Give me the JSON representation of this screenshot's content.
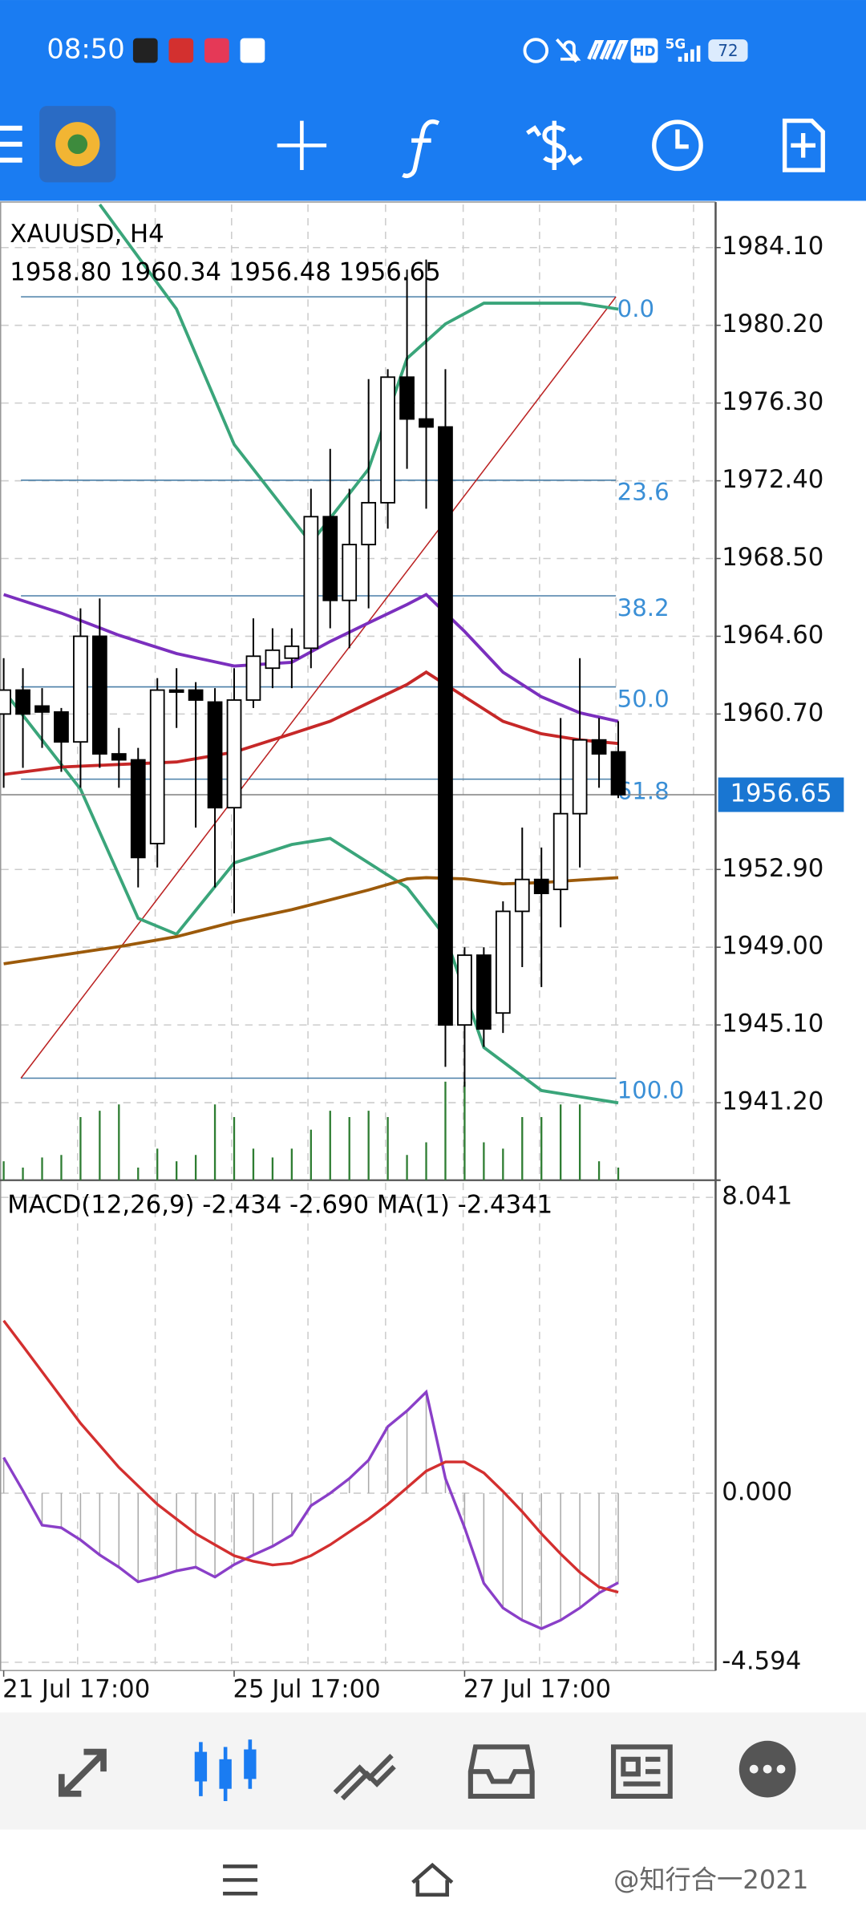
{
  "status_bar": {
    "time": "08:50",
    "hd": "HD",
    "network": "5G",
    "battery": "72"
  },
  "watermark": "@知行合一2021",
  "chart_data": [
    {
      "type": "candlestick",
      "title": "XAUUSD, H4",
      "subtitle": "1958.80 1960.34 1956.48 1956.65",
      "open": [
        1960.7,
        1961.9,
        1961.1,
        1960.8,
        1959.3,
        1964.6,
        1958.7,
        1958.4,
        1954.2,
        1961.9,
        1961.9,
        1961.3,
        1956.0,
        1961.4,
        1963.0,
        1963.5,
        1964.0,
        1970.6,
        1966.4,
        1969.2,
        1971.3,
        1977.6,
        1975.5,
        1975.1,
        1945.1,
        1948.6,
        1945.7,
        1950.8,
        1952.4,
        1951.9,
        1955.7,
        1959.4,
        1958.8
      ],
      "high": [
        1963.5,
        1963.0,
        1962.0,
        1961.0,
        1966.0,
        1966.5,
        1960.0,
        1959.0,
        1962.5,
        1963.0,
        1962.3,
        1962.0,
        1963.0,
        1965.5,
        1965.0,
        1965.0,
        1972.0,
        1974.0,
        1972.0,
        1977.5,
        1978.0,
        1983.0,
        1983.5,
        1978.0,
        1949.0,
        1949.0,
        1951.3,
        1955.0,
        1954.0,
        1960.5,
        1963.5,
        1960.5,
        1960.34
      ],
      "low": [
        1957.0,
        1958.0,
        1959.0,
        1957.8,
        1957.0,
        1958.0,
        1957.0,
        1952.0,
        1953.0,
        1960.0,
        1955.0,
        1952.0,
        1950.7,
        1961.0,
        1962.0,
        1962.0,
        1963.0,
        1965.0,
        1964.0,
        1966.0,
        1970.0,
        1973.0,
        1971.0,
        1943.0,
        1942.0,
        1944.0,
        1944.7,
        1948.0,
        1947.0,
        1950.0,
        1953.0,
        1957.0,
        1956.48
      ],
      "close": [
        1961.9,
        1960.7,
        1960.8,
        1959.3,
        1964.6,
        1958.7,
        1958.4,
        1953.5,
        1961.9,
        1961.8,
        1961.4,
        1956.0,
        1961.4,
        1963.6,
        1963.9,
        1964.1,
        1970.6,
        1966.4,
        1969.2,
        1971.3,
        1977.6,
        1975.5,
        1975.1,
        1945.1,
        1948.6,
        1944.9,
        1950.8,
        1952.4,
        1951.7,
        1955.7,
        1959.4,
        1958.7,
        1956.65
      ],
      "up_color": "#ffffff",
      "down_color": "#000000",
      "ylim": [
        1937.31,
        1986.26
      ],
      "yticks": [
        {
          "value": 1984.1,
          "label": "1984.10"
        },
        {
          "value": 1980.2,
          "label": "1980.20"
        },
        {
          "value": 1976.3,
          "label": "1976.30"
        },
        {
          "value": 1972.4,
          "label": "1972.40"
        },
        {
          "value": 1968.5,
          "label": "1968.50"
        },
        {
          "value": 1964.6,
          "label": "1964.60"
        },
        {
          "value": 1960.7,
          "label": "1960.70"
        },
        {
          "value": 1952.9,
          "label": "1952.90"
        },
        {
          "value": 1949,
          "label": "1949.00"
        },
        {
          "value": 1945.1,
          "label": "1945.10"
        },
        {
          "value": 1941.2,
          "label": "1941.20"
        }
      ],
      "grid": true,
      "current_price": 1956.65,
      "current_price_color": "#1976d2",
      "fibonacci_color": "#3a8fd6",
      "fibonacci": [
        {
          "level": "0.0",
          "price": 1981.63
        },
        {
          "level": "23.6",
          "price": 1972.43
        },
        {
          "level": "38.2",
          "price": 1966.63
        },
        {
          "level": "50.0",
          "price": 1962.06
        },
        {
          "level": "61.8",
          "price": 1957.43
        },
        {
          "level": "100.0",
          "price": 1942.43
        }
      ],
      "lines": [
        {
          "color": "#3aa57a",
          "x": [
            5,
            9,
            12,
            16,
            19,
            21,
            23,
            25,
            30,
            32
          ],
          "values": [
            1986.26,
            1981.01,
            1974.22,
            1969.28,
            1972.99,
            1978.54,
            1980.27,
            1981.31,
            1981.31,
            1981.01
          ]
        },
        {
          "color": "#3aa57a",
          "x": [
            0,
            4,
            7,
            9,
            12,
            15,
            17,
            19,
            21,
            23,
            25,
            28,
            30,
            32
          ],
          "values": [
            1961.87,
            1956.93,
            1950.45,
            1949.65,
            1953.23,
            1954.15,
            1954.46,
            1953.23,
            1952.0,
            1949.53,
            1943.97,
            1941.81,
            1941.5,
            1941.19
          ]
        },
        {
          "color": "#7b2fbe",
          "x": [
            0,
            3,
            6,
            9,
            12,
            15,
            17,
            19,
            21,
            22,
            24,
            26,
            28,
            30,
            32
          ],
          "values": [
            1966.69,
            1965.76,
            1964.65,
            1963.73,
            1963.11,
            1963.29,
            1964.34,
            1965.27,
            1966.19,
            1966.69,
            1964.84,
            1962.8,
            1961.56,
            1960.76,
            1960.33
          ]
        },
        {
          "color": "#c62828",
          "x": [
            0,
            3,
            6,
            9,
            12,
            15,
            17,
            19,
            21,
            22,
            24,
            26,
            28,
            30,
            32
          ],
          "values": [
            1957.67,
            1958.04,
            1958.17,
            1958.29,
            1958.79,
            1959.71,
            1960.33,
            1961.26,
            1962.18,
            1962.8,
            1961.56,
            1960.33,
            1959.71,
            1959.4,
            1959.22
          ]
        },
        {
          "color": "#9c5a0a",
          "x": [
            0,
            3,
            6,
            9,
            12,
            15,
            17,
            19,
            21,
            22,
            24,
            26,
            28,
            30,
            32
          ],
          "values": [
            1948.17,
            1948.6,
            1949.03,
            1949.53,
            1950.27,
            1950.88,
            1951.38,
            1951.87,
            1952.43,
            1952.49,
            1952.43,
            1952.18,
            1952.24,
            1952.37,
            1952.49
          ]
        }
      ],
      "volume_color": "#2e7d32",
      "volumes": [
        15,
        10,
        18,
        20,
        50,
        55,
        60,
        10,
        25,
        15,
        20,
        60,
        50,
        25,
        18,
        25,
        40,
        55,
        50,
        55,
        50,
        20,
        30,
        78,
        78,
        30,
        25,
        50,
        50,
        60,
        60,
        15,
        10
      ]
    },
    {
      "type": "macd",
      "title": "MACD(12,26,9) -2.434 -2.690 MA(1) -2.4341",
      "categories": [
        "21 Jul 17:00",
        null,
        null,
        null,
        null,
        null,
        null,
        null,
        null,
        null,
        null,
        null,
        "25 Jul 17:00",
        null,
        null,
        null,
        null,
        null,
        null,
        null,
        null,
        null,
        null,
        null,
        "27 Jul 17:00",
        null,
        null,
        null,
        null,
        null,
        null,
        null,
        null
      ],
      "macd": [
        0.97,
        0.07,
        -0.87,
        -0.94,
        -1.27,
        -1.68,
        -2.01,
        -2.41,
        -2.28,
        -2.11,
        -2.01,
        -2.28,
        -1.94,
        -1.68,
        -1.44,
        -1.14,
        -0.34,
        0.0,
        0.4,
        0.9,
        1.81,
        2.24,
        2.75,
        0.4,
        -0.94,
        -2.45,
        -3.12,
        -3.45,
        -3.68,
        -3.45,
        -3.12,
        -2.71,
        -2.434
      ],
      "signal": [
        4.69,
        4.0,
        3.3,
        2.6,
        1.9,
        1.3,
        0.7,
        0.2,
        -0.3,
        -0.7,
        -1.1,
        -1.4,
        -1.7,
        -1.85,
        -1.95,
        -1.9,
        -1.7,
        -1.4,
        -1.05,
        -0.7,
        -0.3,
        0.15,
        0.6,
        0.85,
        0.85,
        0.55,
        0.05,
        -0.5,
        -1.1,
        -1.65,
        -2.15,
        -2.55,
        -2.69
      ],
      "macd_color": "#8a3fc8",
      "signal_color": "#d32f2f",
      "histogram_color": "#aaaaaa",
      "ylim": [
        -4.82,
        8.44
      ],
      "yticks": [
        {
          "value": 8.041,
          "label": "8.041"
        },
        {
          "value": 0,
          "label": "0.000"
        },
        {
          "value": -4.594,
          "label": "-4.594"
        }
      ],
      "grid": true
    }
  ]
}
